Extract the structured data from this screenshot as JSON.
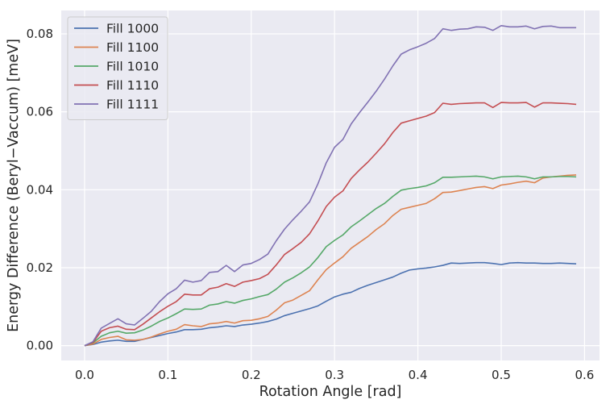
{
  "chart_data": {
    "type": "line",
    "xlabel": "Rotation Angle [rad]",
    "ylabel": "Energy Difference (Beryl−Vaccum) [meV]",
    "xlim": [
      -0.028,
      0.618
    ],
    "ylim": [
      -0.0038,
      0.086
    ],
    "xticks": [
      0.0,
      0.1,
      0.2,
      0.3,
      0.4,
      0.5,
      0.6
    ],
    "xtick_labels": [
      "0.0",
      "0.1",
      "0.2",
      "0.3",
      "0.4",
      "0.5",
      "0.6"
    ],
    "yticks": [
      0.0,
      0.02,
      0.04,
      0.06,
      0.08
    ],
    "ytick_labels": [
      "0.00",
      "0.02",
      "0.04",
      "0.06",
      "0.08"
    ],
    "grid": true,
    "legend_position": "top-left",
    "x": [
      0.0,
      0.01,
      0.02,
      0.03,
      0.04,
      0.05,
      0.06,
      0.07,
      0.08,
      0.09,
      0.1,
      0.11,
      0.12,
      0.13,
      0.14,
      0.15,
      0.16,
      0.17,
      0.18,
      0.19,
      0.2,
      0.21,
      0.22,
      0.23,
      0.24,
      0.25,
      0.26,
      0.27,
      0.28,
      0.29,
      0.3,
      0.31,
      0.32,
      0.33,
      0.34,
      0.35,
      0.36,
      0.37,
      0.38,
      0.39,
      0.4,
      0.41,
      0.42,
      0.43,
      0.44,
      0.45,
      0.46,
      0.47,
      0.48,
      0.49,
      0.5,
      0.51,
      0.52,
      0.53,
      0.54,
      0.55,
      0.56,
      0.57,
      0.58,
      0.59
    ],
    "series": [
      {
        "name": "Fill 1000",
        "color": "#4c72b0",
        "values": [
          0.0,
          0.0003,
          0.0009,
          0.0012,
          0.0014,
          0.0011,
          0.0011,
          0.0016,
          0.0021,
          0.0026,
          0.0031,
          0.0035,
          0.0041,
          0.0041,
          0.0042,
          0.0046,
          0.0048,
          0.0051,
          0.0049,
          0.0053,
          0.0055,
          0.0058,
          0.0062,
          0.0068,
          0.0077,
          0.0083,
          0.0089,
          0.0095,
          0.0102,
          0.0114,
          0.0125,
          0.0132,
          0.0137,
          0.0147,
          0.0155,
          0.0162,
          0.0169,
          0.0176,
          0.0186,
          0.0194,
          0.0197,
          0.0199,
          0.0202,
          0.0206,
          0.0212,
          0.0211,
          0.0212,
          0.0213,
          0.0213,
          0.0211,
          0.0208,
          0.0212,
          0.0213,
          0.0212,
          0.0212,
          0.0211,
          0.0211,
          0.0212,
          0.0211,
          0.021
        ]
      },
      {
        "name": "Fill 1100",
        "color": "#dd8452",
        "values": [
          0.0,
          0.0004,
          0.0016,
          0.0021,
          0.0024,
          0.0015,
          0.0014,
          0.0016,
          0.0022,
          0.003,
          0.0037,
          0.0042,
          0.0054,
          0.0051,
          0.0049,
          0.0056,
          0.0058,
          0.0062,
          0.0058,
          0.0064,
          0.0065,
          0.0069,
          0.0075,
          0.0091,
          0.011,
          0.0117,
          0.0129,
          0.0141,
          0.0169,
          0.0195,
          0.0212,
          0.0228,
          0.025,
          0.0265,
          0.028,
          0.0298,
          0.0313,
          0.0334,
          0.035,
          0.0355,
          0.036,
          0.0365,
          0.0377,
          0.0393,
          0.0394,
          0.0398,
          0.0402,
          0.0406,
          0.0408,
          0.0403,
          0.0412,
          0.0415,
          0.0419,
          0.0422,
          0.0418,
          0.043,
          0.0433,
          0.0435,
          0.0437,
          0.0438
        ]
      },
      {
        "name": "Fill 1010",
        "color": "#55a868",
        "values": [
          0.0,
          0.0007,
          0.0024,
          0.0033,
          0.0037,
          0.0032,
          0.0033,
          0.004,
          0.005,
          0.0062,
          0.0071,
          0.0082,
          0.0094,
          0.0093,
          0.0094,
          0.0104,
          0.0107,
          0.0113,
          0.0109,
          0.0116,
          0.012,
          0.0126,
          0.0131,
          0.0145,
          0.0163,
          0.0174,
          0.0187,
          0.0202,
          0.0226,
          0.0254,
          0.027,
          0.0284,
          0.0305,
          0.032,
          0.0336,
          0.0352,
          0.0365,
          0.0383,
          0.0399,
          0.0403,
          0.0406,
          0.041,
          0.0418,
          0.0432,
          0.0432,
          0.0433,
          0.0434,
          0.0435,
          0.0433,
          0.0428,
          0.0433,
          0.0434,
          0.0435,
          0.0433,
          0.0428,
          0.0433,
          0.0433,
          0.0434,
          0.0434,
          0.0433
        ]
      },
      {
        "name": "Fill 1110",
        "color": "#c44e52",
        "values": [
          0.0,
          0.0008,
          0.0037,
          0.0046,
          0.005,
          0.0042,
          0.0041,
          0.0055,
          0.0071,
          0.0087,
          0.0101,
          0.0113,
          0.0132,
          0.013,
          0.013,
          0.0146,
          0.015,
          0.0159,
          0.0152,
          0.0163,
          0.0167,
          0.0172,
          0.0183,
          0.0207,
          0.0234,
          0.0249,
          0.0265,
          0.0287,
          0.032,
          0.0357,
          0.0381,
          0.0397,
          0.0429,
          0.0451,
          0.0471,
          0.0494,
          0.0518,
          0.0547,
          0.0571,
          0.0577,
          0.0583,
          0.0589,
          0.0598,
          0.0622,
          0.0619,
          0.0621,
          0.0622,
          0.0623,
          0.0623,
          0.0611,
          0.0624,
          0.0623,
          0.0623,
          0.0624,
          0.0612,
          0.0623,
          0.0623,
          0.0622,
          0.0621,
          0.0619
        ]
      },
      {
        "name": "Fill 1111",
        "color": "#8172b3",
        "values": [
          0.0,
          0.001,
          0.0045,
          0.0057,
          0.0069,
          0.0056,
          0.0053,
          0.007,
          0.0088,
          0.0113,
          0.0133,
          0.0146,
          0.0168,
          0.0163,
          0.0167,
          0.0188,
          0.019,
          0.0206,
          0.019,
          0.0207,
          0.0211,
          0.0221,
          0.0235,
          0.0269,
          0.0299,
          0.0323,
          0.0345,
          0.0369,
          0.0415,
          0.0469,
          0.0509,
          0.0529,
          0.0569,
          0.0598,
          0.0625,
          0.0653,
          0.0684,
          0.0718,
          0.0748,
          0.0759,
          0.0767,
          0.0776,
          0.0788,
          0.0813,
          0.0809,
          0.0812,
          0.0813,
          0.0818,
          0.0817,
          0.0809,
          0.0821,
          0.0818,
          0.0818,
          0.082,
          0.0813,
          0.0819,
          0.082,
          0.0816,
          0.0816,
          0.0816
        ]
      }
    ]
  }
}
